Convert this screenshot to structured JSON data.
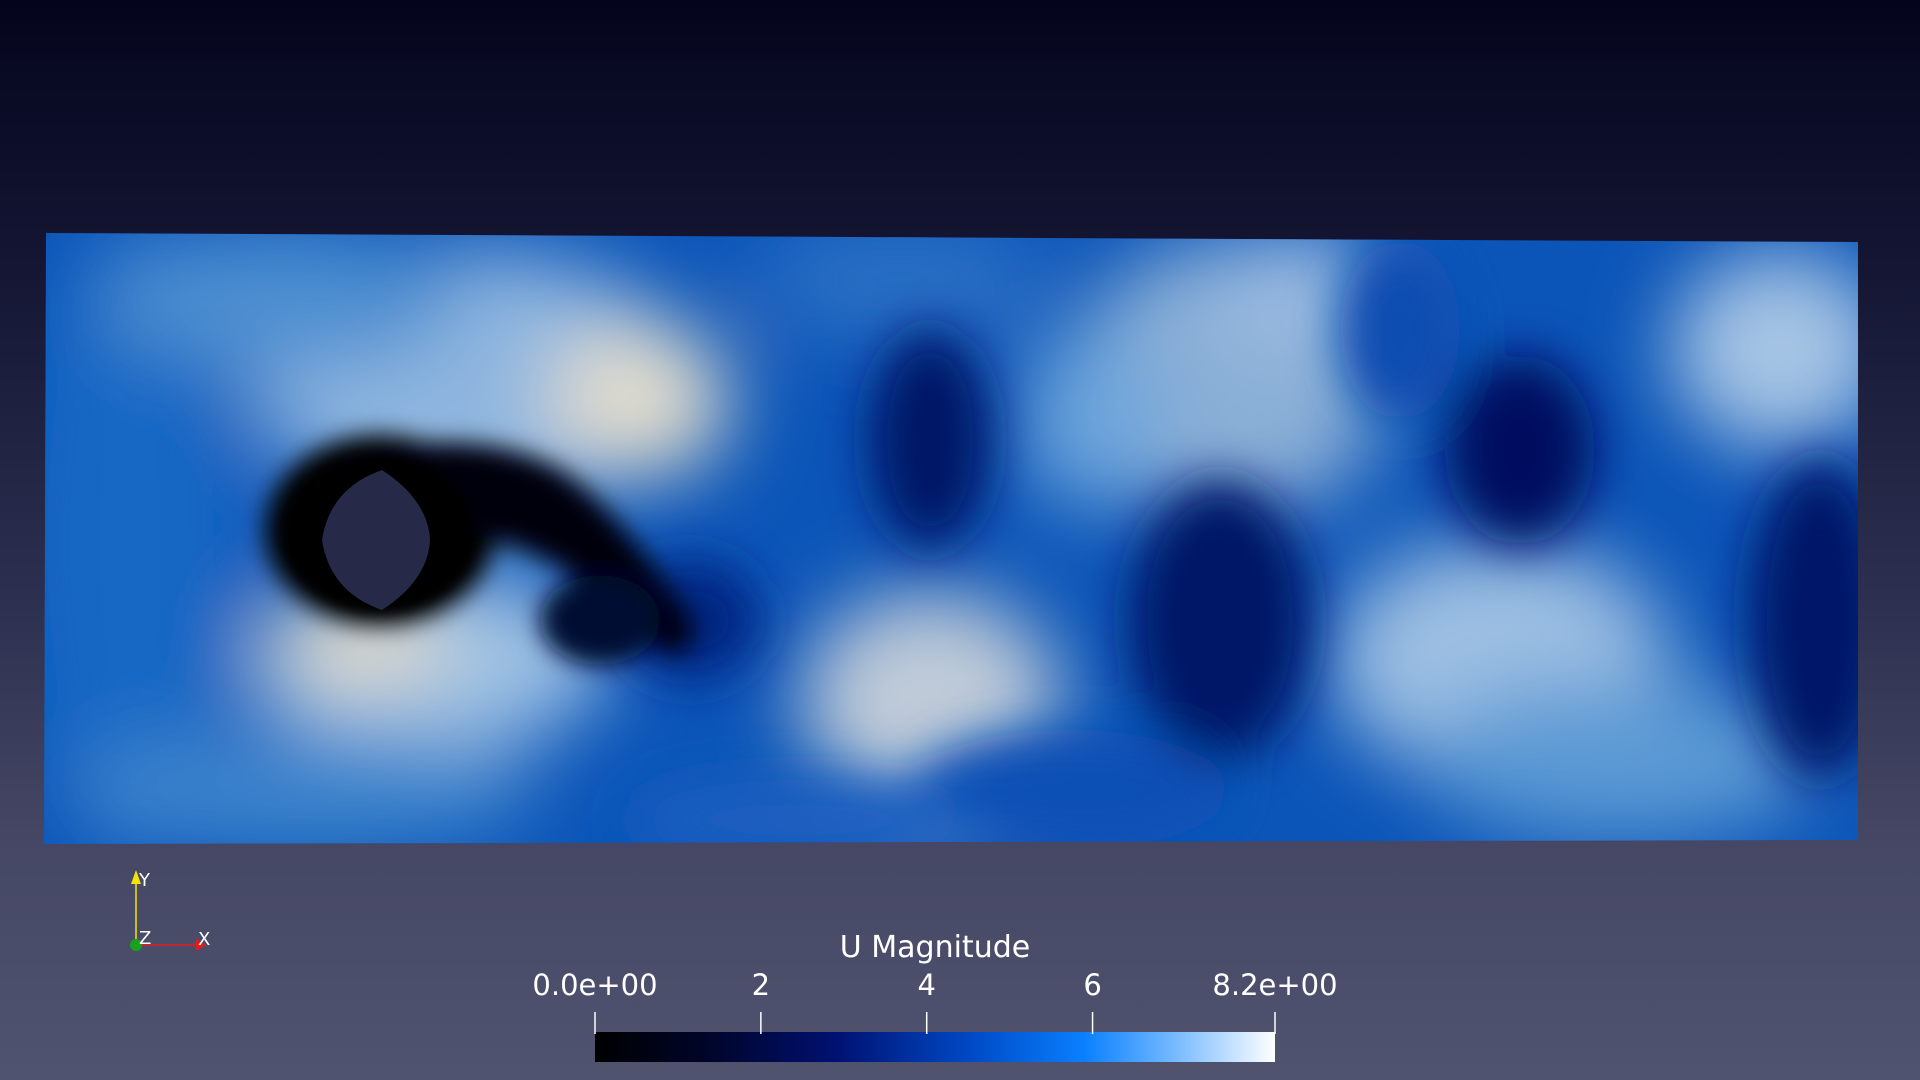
{
  "view": {
    "scalar_field": "U Magnitude",
    "color_map": [
      "#000000",
      "#00084a",
      "#0a3aa6",
      "#0a7cf5",
      "#7fbcff",
      "#ffffff"
    ],
    "background_top": "#04051c",
    "background_bottom": "#50536f"
  },
  "orientation_axes": {
    "y_label": "Y",
    "z_label": "Z",
    "x_label": "X",
    "y_color": "#f2e30a",
    "z_color": "#17a21a",
    "x_color": "#e31b1b"
  },
  "colorbar": {
    "title": "U Magnitude",
    "range": [
      0,
      8.2
    ],
    "ticks": [
      {
        "value": 0,
        "label": "0.0e+00"
      },
      {
        "value": 2,
        "label": "2"
      },
      {
        "value": 4,
        "label": "4"
      },
      {
        "value": 6,
        "label": "6"
      },
      {
        "value": 8.2,
        "label": "8.2e+00"
      }
    ]
  }
}
